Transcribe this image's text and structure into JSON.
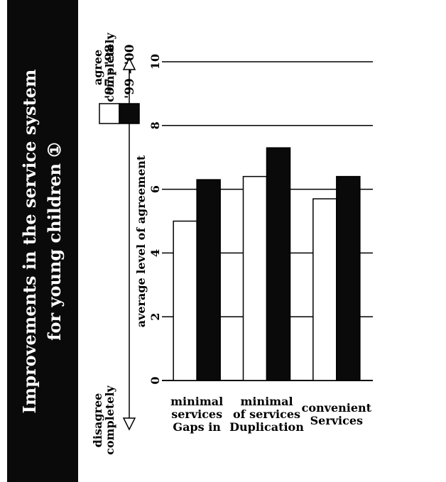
{
  "chart_data": {
    "type": "bar",
    "orientation": "horizontal",
    "title_lines": [
      "Improvements in the service system",
      "for young children ①"
    ],
    "categories": [
      [
        "Gaps in",
        "services",
        "minimal"
      ],
      [
        "Duplication",
        "of services",
        "minimal"
      ],
      [
        "Services",
        "convenient"
      ]
    ],
    "series": [
      {
        "name": "'97 - '98",
        "values": [
          5.0,
          6.4,
          5.7
        ],
        "color": "#ffffff"
      },
      {
        "name": "'99 - '00",
        "values": [
          6.3,
          7.3,
          6.4
        ],
        "color": "#0a0a0a"
      }
    ],
    "value_axis": {
      "label": "average level of agreement",
      "range": [
        0,
        10
      ],
      "ticks": [
        "0",
        "2",
        "4",
        "6",
        "8",
        "10"
      ],
      "high_end_label": [
        "agree",
        "completely"
      ],
      "low_end_label": [
        "disagree",
        "completely"
      ]
    },
    "grid": true,
    "legend_position": "top-right"
  }
}
